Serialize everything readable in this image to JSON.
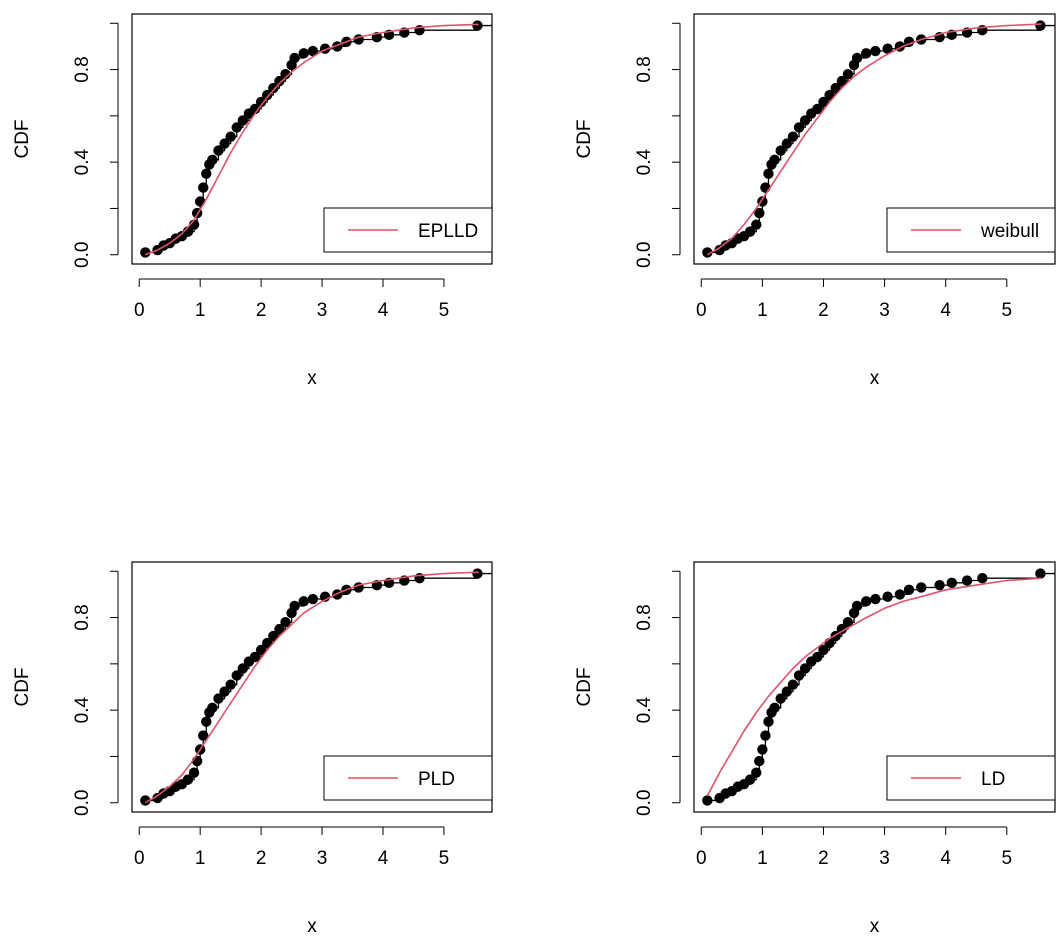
{
  "colors": {
    "empirical": "#000000",
    "fitted": "#DF536B"
  },
  "chart_data": [
    {
      "type": "line",
      "xlabel": "x",
      "ylabel": "CDF",
      "xlim": [
        0.1,
        5.57
      ],
      "ylim": [
        0,
        1
      ],
      "xticks": [
        "0",
        "1",
        "2",
        "3",
        "4",
        "5"
      ],
      "yticks": [
        "0.0",
        "0.4",
        "0.8"
      ],
      "legend": "bottom-right",
      "series": [
        {
          "name": "",
          "kind": "empirical-step",
          "x": [
            0.1,
            0.3,
            0.4,
            0.5,
            0.6,
            0.7,
            0.8,
            0.9,
            0.95,
            1.0,
            1.05,
            1.1,
            1.15,
            1.2,
            1.3,
            1.4,
            1.5,
            1.6,
            1.7,
            1.8,
            1.9,
            2.0,
            2.1,
            2.2,
            2.3,
            2.4,
            2.5,
            2.55,
            2.7,
            2.85,
            3.05,
            3.25,
            3.4,
            3.6,
            3.9,
            4.1,
            4.35,
            4.6,
            5.55
          ],
          "y": [
            0.01,
            0.02,
            0.04,
            0.05,
            0.07,
            0.08,
            0.1,
            0.13,
            0.18,
            0.23,
            0.29,
            0.35,
            0.39,
            0.41,
            0.45,
            0.48,
            0.51,
            0.55,
            0.58,
            0.61,
            0.63,
            0.66,
            0.69,
            0.72,
            0.75,
            0.78,
            0.82,
            0.85,
            0.87,
            0.88,
            0.89,
            0.9,
            0.92,
            0.93,
            0.94,
            0.95,
            0.96,
            0.97,
            0.99
          ]
        },
        {
          "name": "EPLLD",
          "kind": "fitted",
          "x": [
            0.1,
            0.3,
            0.5,
            0.7,
            0.9,
            1.1,
            1.3,
            1.5,
            1.7,
            1.9,
            2.1,
            2.3,
            2.5,
            2.7,
            3.0,
            3.3,
            3.6,
            4.0,
            4.5,
            5.0,
            5.57
          ],
          "y": [
            0.0,
            0.02,
            0.05,
            0.09,
            0.15,
            0.24,
            0.34,
            0.44,
            0.53,
            0.61,
            0.68,
            0.74,
            0.79,
            0.83,
            0.88,
            0.91,
            0.94,
            0.96,
            0.98,
            0.99,
            0.995
          ]
        }
      ]
    },
    {
      "type": "line",
      "xlabel": "x",
      "ylabel": "CDF",
      "xlim": [
        0.1,
        5.57
      ],
      "ylim": [
        0,
        1
      ],
      "xticks": [
        "0",
        "1",
        "2",
        "3",
        "4",
        "5"
      ],
      "yticks": [
        "0.0",
        "0.4",
        "0.8"
      ],
      "legend": "bottom-right",
      "series": [
        {
          "name": "",
          "kind": "empirical-step",
          "x": [
            0.1,
            0.3,
            0.4,
            0.5,
            0.6,
            0.7,
            0.8,
            0.9,
            0.95,
            1.0,
            1.05,
            1.1,
            1.15,
            1.2,
            1.3,
            1.4,
            1.5,
            1.6,
            1.7,
            1.8,
            1.9,
            2.0,
            2.1,
            2.2,
            2.3,
            2.4,
            2.5,
            2.55,
            2.7,
            2.85,
            3.05,
            3.25,
            3.4,
            3.6,
            3.9,
            4.1,
            4.35,
            4.6,
            5.55
          ],
          "y": [
            0.01,
            0.02,
            0.04,
            0.05,
            0.07,
            0.08,
            0.1,
            0.13,
            0.18,
            0.23,
            0.29,
            0.35,
            0.39,
            0.41,
            0.45,
            0.48,
            0.51,
            0.55,
            0.58,
            0.61,
            0.63,
            0.66,
            0.69,
            0.72,
            0.75,
            0.78,
            0.82,
            0.85,
            0.87,
            0.88,
            0.89,
            0.9,
            0.92,
            0.93,
            0.94,
            0.95,
            0.96,
            0.97,
            0.99
          ]
        },
        {
          "name": "weibull",
          "kind": "fitted",
          "x": [
            0.1,
            0.3,
            0.5,
            0.7,
            0.9,
            1.1,
            1.3,
            1.5,
            1.7,
            1.9,
            2.1,
            2.3,
            2.5,
            2.7,
            3.0,
            3.3,
            3.6,
            4.0,
            4.5,
            5.0,
            5.57
          ],
          "y": [
            0.0,
            0.03,
            0.07,
            0.13,
            0.2,
            0.28,
            0.36,
            0.44,
            0.52,
            0.59,
            0.66,
            0.72,
            0.77,
            0.81,
            0.86,
            0.9,
            0.93,
            0.96,
            0.98,
            0.99,
            0.997
          ]
        }
      ]
    },
    {
      "type": "line",
      "xlabel": "x",
      "ylabel": "CDF",
      "xlim": [
        0.1,
        5.57
      ],
      "ylim": [
        0,
        1
      ],
      "xticks": [
        "0",
        "1",
        "2",
        "3",
        "4",
        "5"
      ],
      "yticks": [
        "0.0",
        "0.4",
        "0.8"
      ],
      "legend": "bottom-right",
      "series": [
        {
          "name": "",
          "kind": "empirical-step",
          "x": [
            0.1,
            0.3,
            0.4,
            0.5,
            0.6,
            0.7,
            0.8,
            0.9,
            0.95,
            1.0,
            1.05,
            1.1,
            1.15,
            1.2,
            1.3,
            1.4,
            1.5,
            1.6,
            1.7,
            1.8,
            1.9,
            2.0,
            2.1,
            2.2,
            2.3,
            2.4,
            2.5,
            2.55,
            2.7,
            2.85,
            3.05,
            3.25,
            3.4,
            3.6,
            3.9,
            4.1,
            4.35,
            4.6,
            5.55
          ],
          "y": [
            0.01,
            0.02,
            0.04,
            0.05,
            0.07,
            0.08,
            0.1,
            0.13,
            0.18,
            0.23,
            0.29,
            0.35,
            0.39,
            0.41,
            0.45,
            0.48,
            0.51,
            0.55,
            0.58,
            0.61,
            0.63,
            0.66,
            0.69,
            0.72,
            0.75,
            0.78,
            0.82,
            0.85,
            0.87,
            0.88,
            0.89,
            0.9,
            0.92,
            0.93,
            0.94,
            0.95,
            0.96,
            0.97,
            0.99
          ]
        },
        {
          "name": "PLD",
          "kind": "fitted",
          "x": [
            0.1,
            0.3,
            0.5,
            0.7,
            0.9,
            1.1,
            1.3,
            1.5,
            1.7,
            1.9,
            2.1,
            2.3,
            2.5,
            2.7,
            3.0,
            3.3,
            3.6,
            4.0,
            4.5,
            5.0,
            5.57
          ],
          "y": [
            0.0,
            0.03,
            0.07,
            0.12,
            0.19,
            0.27,
            0.35,
            0.43,
            0.51,
            0.59,
            0.66,
            0.72,
            0.77,
            0.82,
            0.87,
            0.91,
            0.94,
            0.96,
            0.98,
            0.99,
            0.996
          ]
        }
      ]
    },
    {
      "type": "line",
      "xlabel": "x",
      "ylabel": "CDF",
      "xlim": [
        0.1,
        5.57
      ],
      "ylim": [
        0,
        1
      ],
      "xticks": [
        "0",
        "1",
        "2",
        "3",
        "4",
        "5"
      ],
      "yticks": [
        "0.0",
        "0.4",
        "0.8"
      ],
      "legend": "bottom-right",
      "series": [
        {
          "name": "",
          "kind": "empirical-step",
          "x": [
            0.1,
            0.3,
            0.4,
            0.5,
            0.6,
            0.7,
            0.8,
            0.9,
            0.95,
            1.0,
            1.05,
            1.1,
            1.15,
            1.2,
            1.3,
            1.4,
            1.5,
            1.6,
            1.7,
            1.8,
            1.9,
            2.0,
            2.1,
            2.2,
            2.3,
            2.4,
            2.5,
            2.55,
            2.7,
            2.85,
            3.05,
            3.25,
            3.4,
            3.6,
            3.9,
            4.1,
            4.35,
            4.6,
            5.55
          ],
          "y": [
            0.01,
            0.02,
            0.04,
            0.05,
            0.07,
            0.08,
            0.1,
            0.13,
            0.18,
            0.23,
            0.29,
            0.35,
            0.39,
            0.41,
            0.45,
            0.48,
            0.51,
            0.55,
            0.58,
            0.61,
            0.63,
            0.66,
            0.69,
            0.72,
            0.75,
            0.78,
            0.82,
            0.85,
            0.87,
            0.88,
            0.89,
            0.9,
            0.92,
            0.93,
            0.94,
            0.95,
            0.96,
            0.97,
            0.99
          ]
        },
        {
          "name": "LD",
          "kind": "fitted",
          "x": [
            0.1,
            0.3,
            0.5,
            0.7,
            0.9,
            1.1,
            1.3,
            1.5,
            1.7,
            1.9,
            2.1,
            2.3,
            2.5,
            2.7,
            3.0,
            3.3,
            3.6,
            4.0,
            4.5,
            5.0,
            5.57
          ],
          "y": [
            0.03,
            0.13,
            0.22,
            0.31,
            0.39,
            0.46,
            0.52,
            0.58,
            0.63,
            0.67,
            0.71,
            0.74,
            0.77,
            0.8,
            0.84,
            0.87,
            0.89,
            0.92,
            0.94,
            0.96,
            0.97
          ]
        }
      ]
    }
  ]
}
